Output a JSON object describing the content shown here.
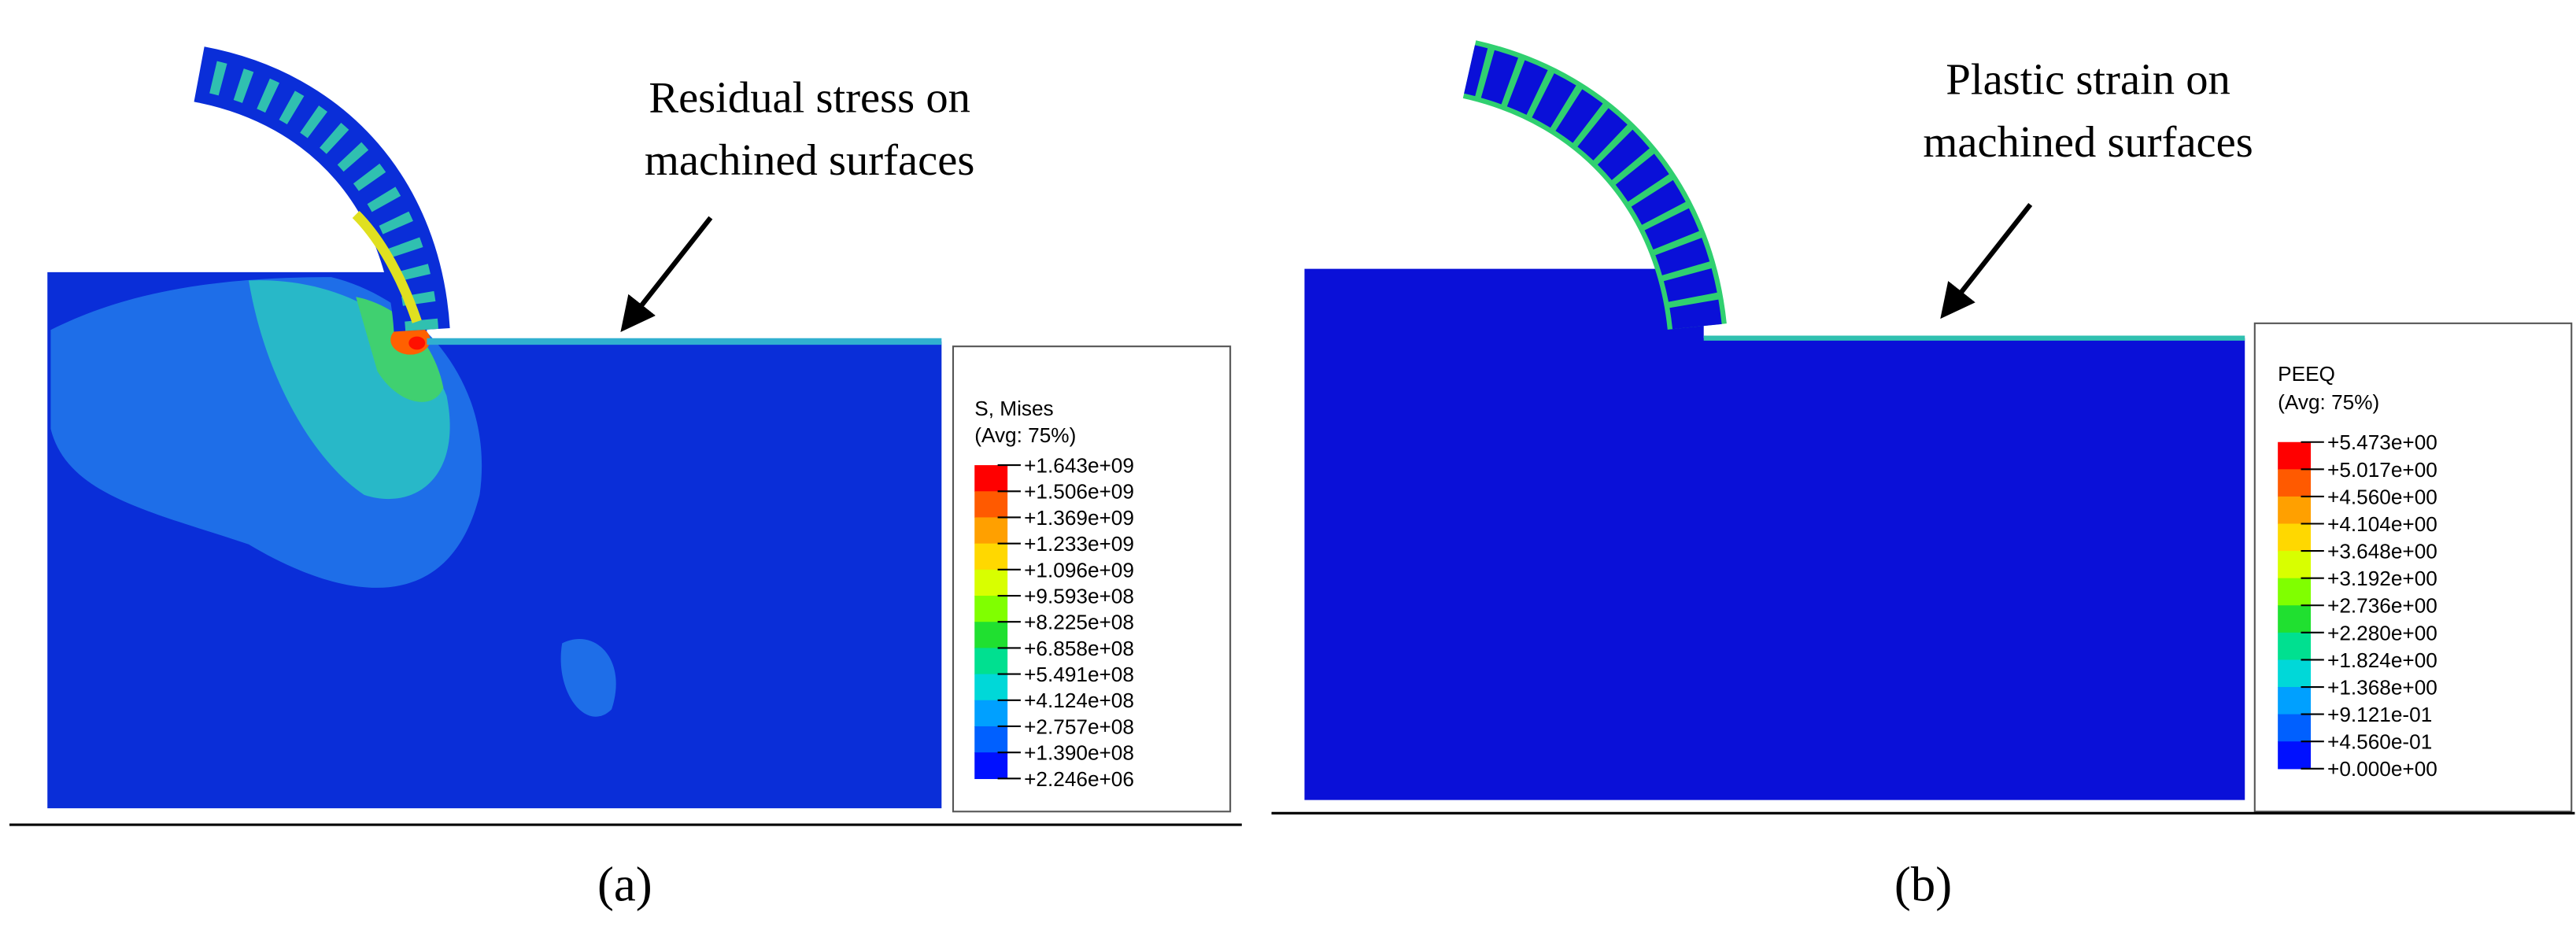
{
  "panels": [
    {
      "annotation": [
        "Residual stress on",
        "machined surfaces"
      ],
      "legend": {
        "title": [
          "S, Mises",
          "(Avg: 75%)"
        ],
        "labels": [
          "+1.643e+09",
          "+1.506e+09",
          "+1.369e+09",
          "+1.233e+09",
          "+1.096e+09",
          "+9.593e+08",
          "+8.225e+08",
          "+6.858e+08",
          "+5.491e+08",
          "+4.124e+08",
          "+2.757e+08",
          "+1.390e+08",
          "+2.246e+06"
        ]
      },
      "caption": "(a)"
    },
    {
      "annotation": [
        "Plastic strain on",
        "machined surfaces"
      ],
      "legend": {
        "title": [
          "PEEQ",
          "(Avg: 75%)"
        ],
        "labels": [
          "+5.473e+00",
          "+5.017e+00",
          "+4.560e+00",
          "+4.104e+00",
          "+3.648e+00",
          "+3.192e+00",
          "+2.736e+00",
          "+2.280e+00",
          "+1.824e+00",
          "+1.368e+00",
          "+9.121e-01",
          "+4.560e-01",
          "+0.000e+00"
        ]
      },
      "caption": "(b)"
    }
  ]
}
